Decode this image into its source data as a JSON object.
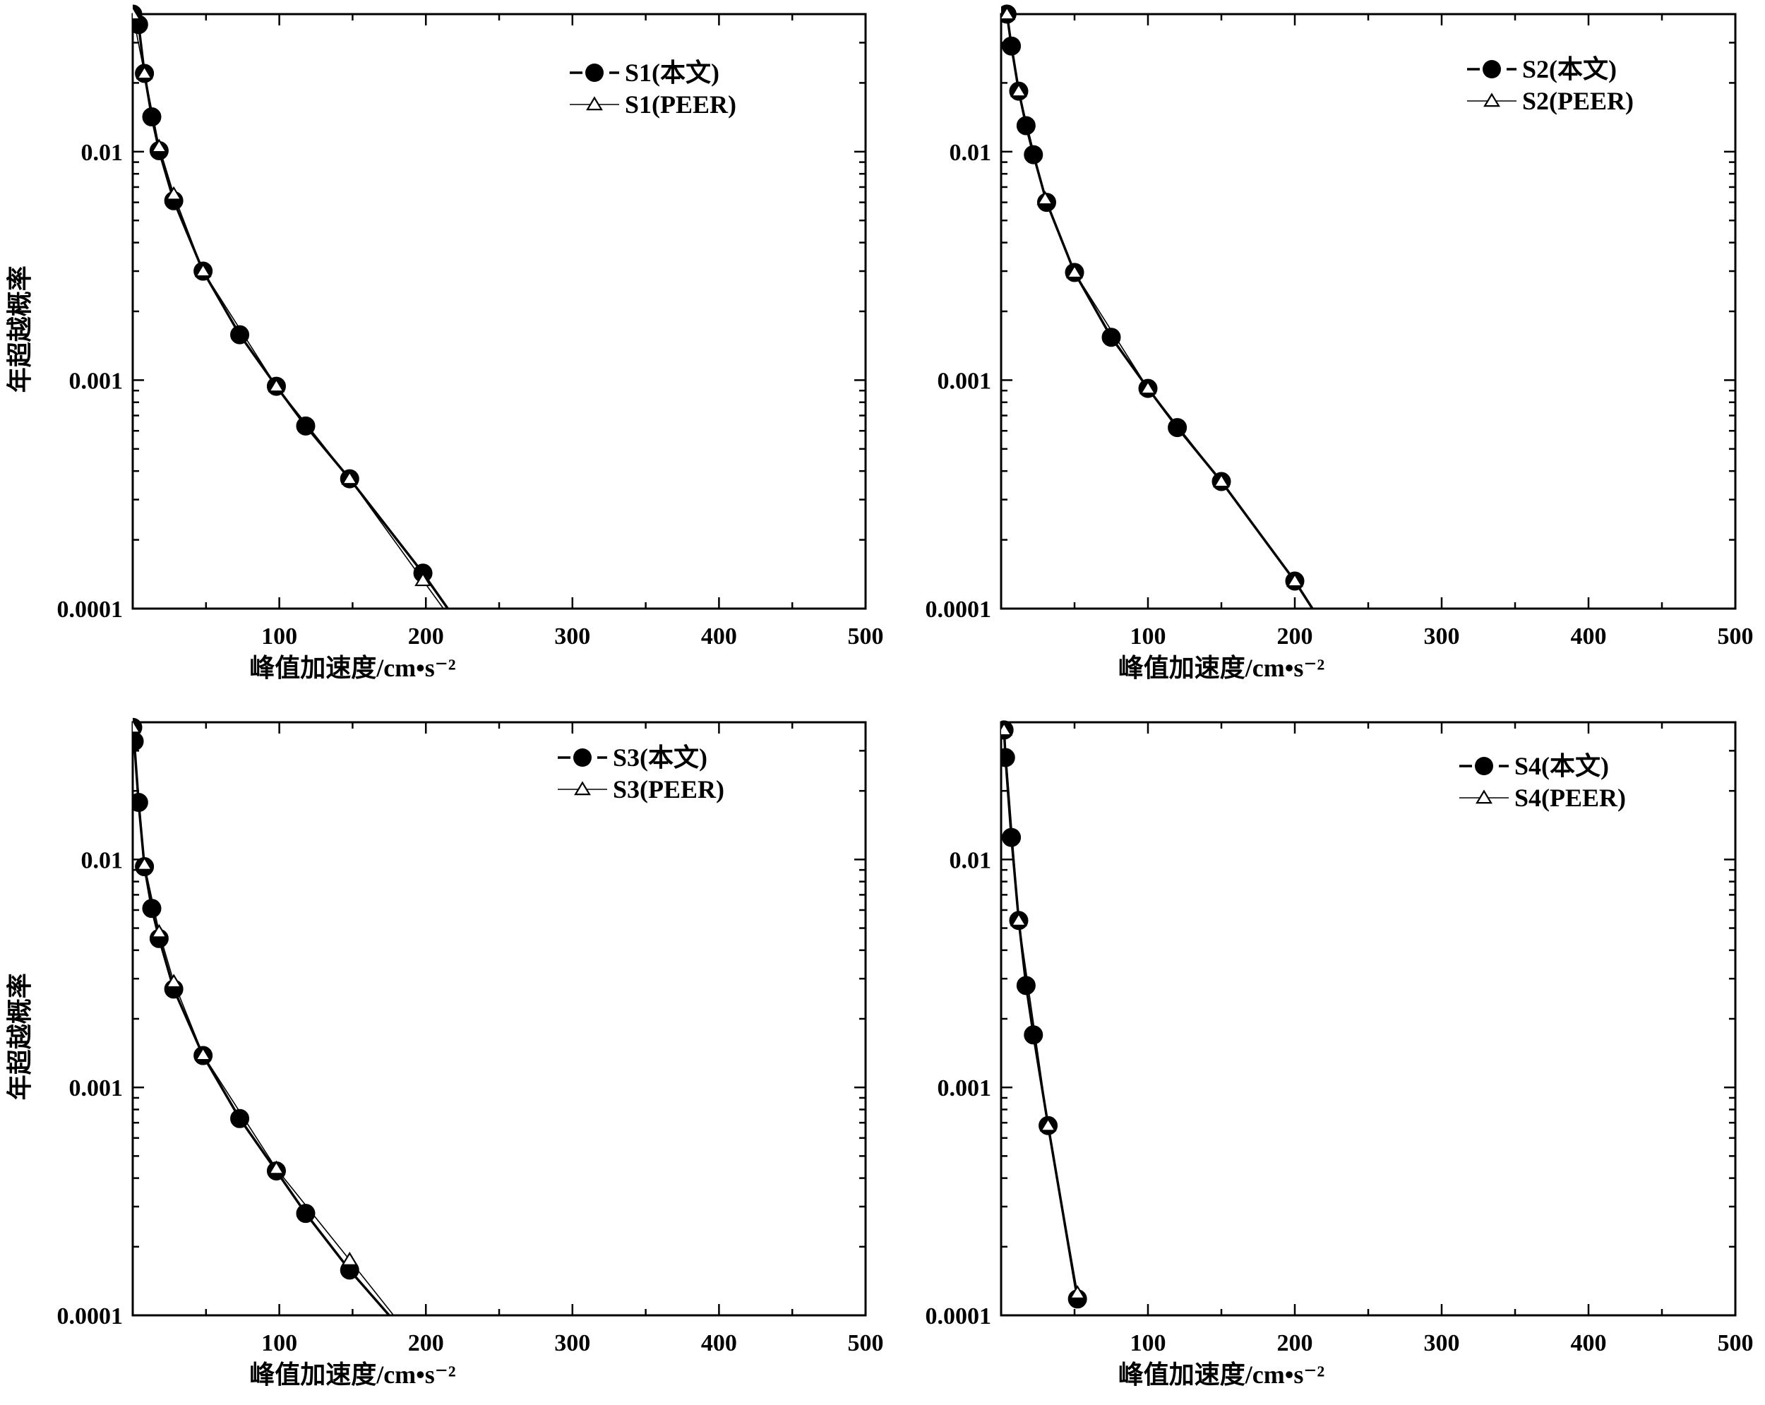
{
  "chart_data": [
    {
      "type": "line",
      "xlabel": "峰值加速度/cm•s⁻²",
      "ylabel": "年超越概率",
      "xlim": [
        0,
        500
      ],
      "ylim": [
        0.0001,
        0.04
      ],
      "yscale": "log",
      "x_ticks": [
        "100",
        "200",
        "300",
        "400",
        "500"
      ],
      "y_ticks": [
        "0.01",
        "0.001",
        "0.0001"
      ],
      "legend_position": "top-right",
      "series": [
        {
          "name": "S1(本文)",
          "marker": "filled-circle",
          "color": "#000000",
          "x": [
            0,
            4,
            8,
            13,
            18,
            28,
            48,
            73,
            98,
            118,
            148,
            198,
            215
          ],
          "y": [
            0.04,
            0.036,
            0.022,
            0.0142,
            0.0101,
            0.0061,
            0.003,
            0.00158,
            0.00094,
            0.00063,
            0.00037,
            0.000143,
            0.0001
          ]
        },
        {
          "name": "S1(PEER)",
          "marker": "open-triangle",
          "color": "#000000",
          "x": [
            0,
            8,
            18,
            28,
            48,
            98,
            148,
            198,
            212
          ],
          "y": [
            0.04,
            0.022,
            0.0105,
            0.0065,
            0.003,
            0.00094,
            0.00037,
            0.000133,
            0.0001
          ]
        }
      ]
    },
    {
      "type": "line",
      "xlabel": "峰值加速度/cm•s⁻²",
      "ylabel": "",
      "xlim": [
        0,
        500
      ],
      "ylim": [
        0.0001,
        0.04
      ],
      "yscale": "log",
      "x_ticks": [
        "100",
        "200",
        "300",
        "400",
        "500"
      ],
      "y_ticks": [
        "0.01",
        "0.001",
        "0.0001"
      ],
      "legend_position": "top-right",
      "series": [
        {
          "name": "S2(本文)",
          "marker": "filled-circle",
          "color": "#000000",
          "x": [
            4,
            7,
            12,
            17,
            22,
            31,
            50,
            75,
            100,
            120,
            150,
            200,
            212
          ],
          "y": [
            0.04,
            0.029,
            0.0184,
            0.013,
            0.0097,
            0.006,
            0.00296,
            0.00154,
            0.00092,
            0.00062,
            0.00036,
            0.000132,
            0.0001
          ]
        },
        {
          "name": "S2(PEER)",
          "marker": "open-triangle",
          "color": "#000000",
          "x": [
            4,
            12,
            30,
            50,
            100,
            150,
            200,
            212
          ],
          "y": [
            0.04,
            0.0184,
            0.0062,
            0.00296,
            0.00092,
            0.00036,
            0.000132,
            0.0001
          ]
        }
      ]
    },
    {
      "type": "line",
      "xlabel": "峰值加速度/cm•s⁻²",
      "ylabel": "年超越概率",
      "xlim": [
        0,
        500
      ],
      "ylim": [
        0.0001,
        0.04
      ],
      "yscale": "log",
      "x_ticks": [
        "100",
        "200",
        "300",
        "400",
        "500"
      ],
      "y_ticks": [
        "0.01",
        "0.001",
        "0.0001"
      ],
      "legend_position": "top-right",
      "series": [
        {
          "name": "S3(本文)",
          "marker": "filled-circle",
          "color": "#000000",
          "x": [
            0,
            1,
            4,
            8,
            13,
            18,
            28,
            48,
            73,
            98,
            118,
            148,
            175
          ],
          "y": [
            0.038,
            0.033,
            0.0178,
            0.0093,
            0.0061,
            0.0045,
            0.0027,
            0.00138,
            0.00073,
            0.00043,
            0.00028,
            0.000158,
            0.0001
          ]
        },
        {
          "name": "S3(PEER)",
          "marker": "open-triangle",
          "color": "#000000",
          "x": [
            0,
            8,
            18,
            28,
            48,
            98,
            148,
            178
          ],
          "y": [
            0.038,
            0.0095,
            0.0048,
            0.0029,
            0.00139,
            0.00044,
            0.000175,
            0.0001
          ]
        }
      ]
    },
    {
      "type": "line",
      "xlabel": "峰值加速度/cm•s⁻²",
      "ylabel": "",
      "xlim": [
        0,
        500
      ],
      "ylim": [
        0.0001,
        0.04
      ],
      "yscale": "log",
      "x_ticks": [
        "100",
        "200",
        "300",
        "400",
        "500"
      ],
      "y_ticks": [
        "0.01",
        "0.001",
        "0.0001"
      ],
      "legend_position": "top-right",
      "series": [
        {
          "name": "S4(本文)",
          "marker": "filled-circle",
          "color": "#000000",
          "x": [
            2,
            3,
            7,
            12,
            17,
            22,
            32,
            52
          ],
          "y": [
            0.037,
            0.028,
            0.0125,
            0.0054,
            0.0028,
            0.0017,
            0.00068,
            0.000118
          ]
        },
        {
          "name": "S4(PEER)",
          "marker": "open-triangle",
          "color": "#000000",
          "x": [
            2,
            12,
            32,
            52
          ],
          "y": [
            0.037,
            0.0054,
            0.00068,
            0.000125
          ]
        }
      ]
    }
  ]
}
